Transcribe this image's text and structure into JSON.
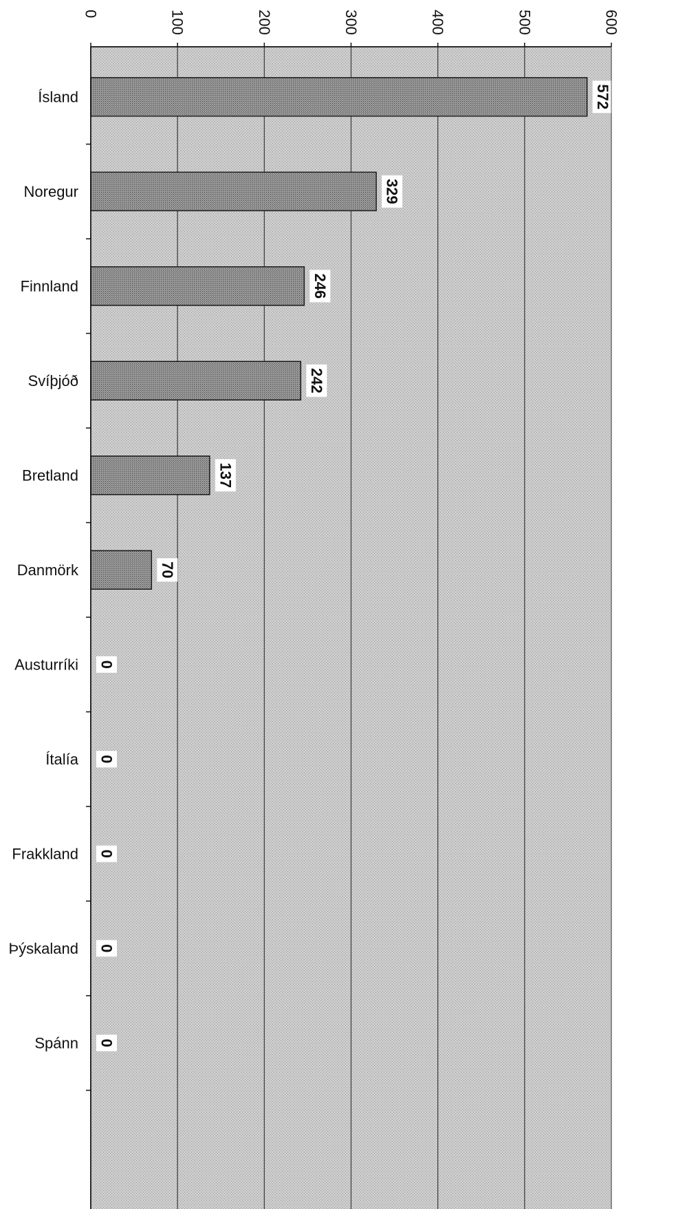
{
  "chart_data": {
    "type": "bar",
    "orientation": "horizontal",
    "categories": [
      "Ísland",
      "Noregur",
      "Finnland",
      "Svíþjóð",
      "Bretland",
      "Danmörk",
      "Austurríki",
      "Ítalía",
      "Frakkland",
      "Þýskaland",
      "Spánn"
    ],
    "values": [
      572,
      329,
      246,
      242,
      137,
      70,
      0,
      0,
      0,
      0,
      0
    ],
    "value_labels": [
      "572",
      "329",
      "246",
      "242",
      "137",
      "70",
      "0",
      "0",
      "0",
      "0",
      "0"
    ],
    "xlim": [
      0,
      600
    ],
    "ticks": [
      0,
      100,
      200,
      300,
      400,
      500,
      600
    ],
    "tick_labels": [
      "0",
      "100",
      "200",
      "300",
      "400",
      "500",
      "600"
    ],
    "grid": true,
    "title": "",
    "xlabel": "",
    "ylabel": "",
    "colors": {
      "plot_background": "#c9c9c9",
      "bar_fill": "#8c8c8c",
      "bar_stroke": "#1a1a1a",
      "gridline": "#333333",
      "label_box": "#ffffff"
    }
  }
}
